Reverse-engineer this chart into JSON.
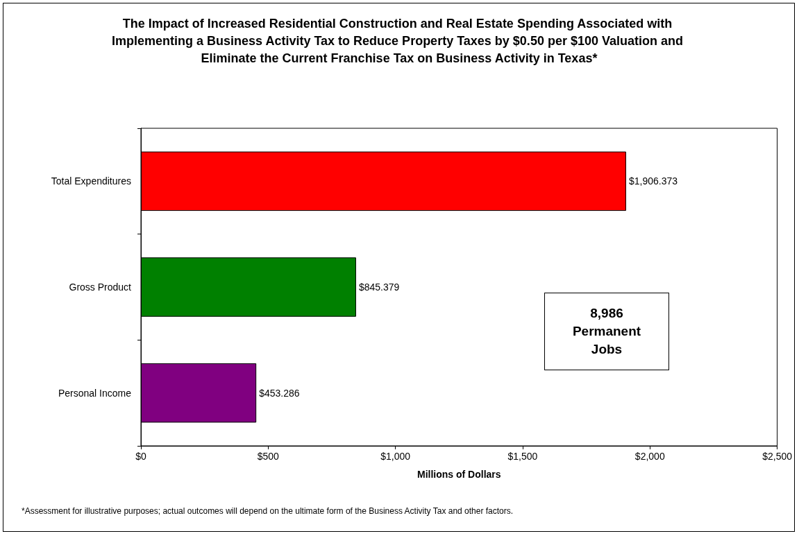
{
  "chart_data": {
    "type": "bar",
    "orientation": "horizontal",
    "title": "The Impact of Increased Residential Construction and Real Estate Spending Associated with Implementing a Business Activity Tax to Reduce Property Taxes by $0.50 per $100 Valuation and Eliminate the Current Franchise Tax on Business Activity in Texas*",
    "xlabel": "Millions of Dollars",
    "categories": [
      "Total Expenditures",
      "Gross Product",
      "Personal Income"
    ],
    "values": [
      1906.373,
      845.379,
      453.286
    ],
    "colors": [
      "#ff0000",
      "#008000",
      "#800080"
    ],
    "value_labels": [
      "$1,906.373",
      "$845.379",
      "$453.286"
    ],
    "xlim": [
      0,
      2500
    ],
    "xticks": [
      {
        "value": 0,
        "label": "$0"
      },
      {
        "value": 500,
        "label": "$500"
      },
      {
        "value": 1000,
        "label": "$1,000"
      },
      {
        "value": 1500,
        "label": "$1,500"
      },
      {
        "value": 2000,
        "label": "$2,000"
      },
      {
        "value": 2500,
        "label": "$2,500"
      }
    ],
    "grid": false,
    "annotations": [
      "8,986 Permanent Jobs",
      "*Assessment for illustrative purposes; actual outcomes will depend on the ultimate form of the Business Activity Tax and other factors."
    ]
  }
}
